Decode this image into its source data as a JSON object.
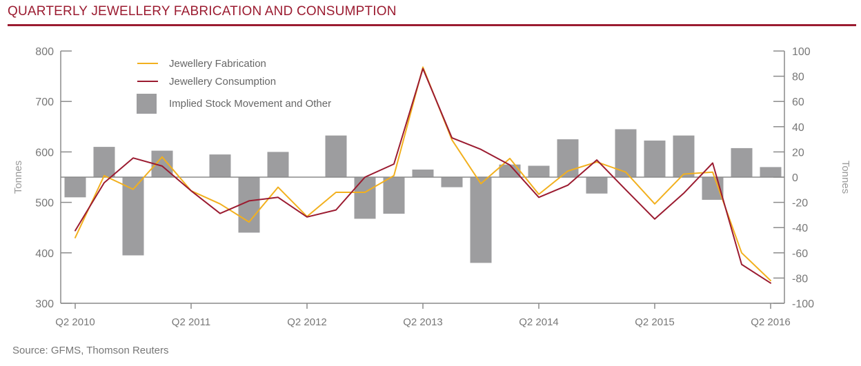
{
  "header": {
    "title": "QUARTERLY JEWELLERY FABRICATION AND CONSUMPTION"
  },
  "footer": {
    "source": "Source: GFMS, Thomson Reuters"
  },
  "colors": {
    "brand": "#9b1b30",
    "fabrication": "#f2b01e",
    "consumption": "#9b1b30",
    "bars": "#9d9d9f",
    "axis": "#8a8a8a",
    "text": "#777777"
  },
  "chart_data": {
    "type": "bar",
    "title": "QUARTERLY JEWELLERY FABRICATION AND CONSUMPTION",
    "x_tick_labels": [
      "Q2 2010",
      "Q2 2011",
      "Q2 2012",
      "Q2 2013",
      "Q2 2014",
      "Q2 2015",
      "Q2 2016"
    ],
    "categories": [
      "Q2 2010",
      "Q3 2010",
      "Q4 2010",
      "Q1 2011",
      "Q2 2011",
      "Q3 2011",
      "Q4 2011",
      "Q1 2012",
      "Q2 2012",
      "Q3 2012",
      "Q4 2012",
      "Q1 2013",
      "Q2 2013",
      "Q3 2013",
      "Q4 2013",
      "Q1 2014",
      "Q2 2014",
      "Q3 2014",
      "Q4 2014",
      "Q1 2015",
      "Q2 2015",
      "Q3 2015",
      "Q4 2015",
      "Q1 2016",
      "Q2 2016"
    ],
    "y_left": {
      "label": "Tonnes",
      "ylim": [
        300,
        800
      ],
      "ticks": [
        300,
        400,
        500,
        600,
        700,
        800
      ]
    },
    "y_right": {
      "label": "Tonnes",
      "ylim": [
        -100,
        100
      ],
      "ticks": [
        -100,
        -80,
        -60,
        -40,
        -20,
        0,
        20,
        40,
        60,
        80,
        100
      ]
    },
    "legend": {
      "position": "top-left"
    },
    "grid": false,
    "series": [
      {
        "name": "Implied Stock Movement and Other",
        "type": "bar",
        "axis": "right",
        "color": "#9d9d9f",
        "values": [
          -16,
          24,
          -62,
          21,
          null,
          18,
          -44,
          20,
          null,
          33,
          -33,
          -29,
          6,
          -8,
          -68,
          10,
          9,
          30,
          -13,
          38,
          29,
          33,
          -18,
          23,
          8
        ]
      },
      {
        "name": "Jewellery Fabrication",
        "type": "line",
        "axis": "left",
        "color": "#f2b01e",
        "values": [
          430,
          553,
          526,
          590,
          523,
          497,
          461,
          530,
          472,
          520,
          520,
          553,
          768,
          624,
          537,
          587,
          516,
          562,
          580,
          560,
          497,
          556,
          560,
          400,
          345
        ]
      },
      {
        "name": "Jewellery Consumption",
        "type": "line",
        "axis": "left",
        "color": "#9b1b30",
        "values": [
          444,
          539,
          588,
          572,
          523,
          478,
          503,
          510,
          471,
          485,
          550,
          576,
          765,
          628,
          605,
          574,
          510,
          534,
          584,
          525,
          467,
          518,
          578,
          377,
          340
        ]
      }
    ]
  }
}
